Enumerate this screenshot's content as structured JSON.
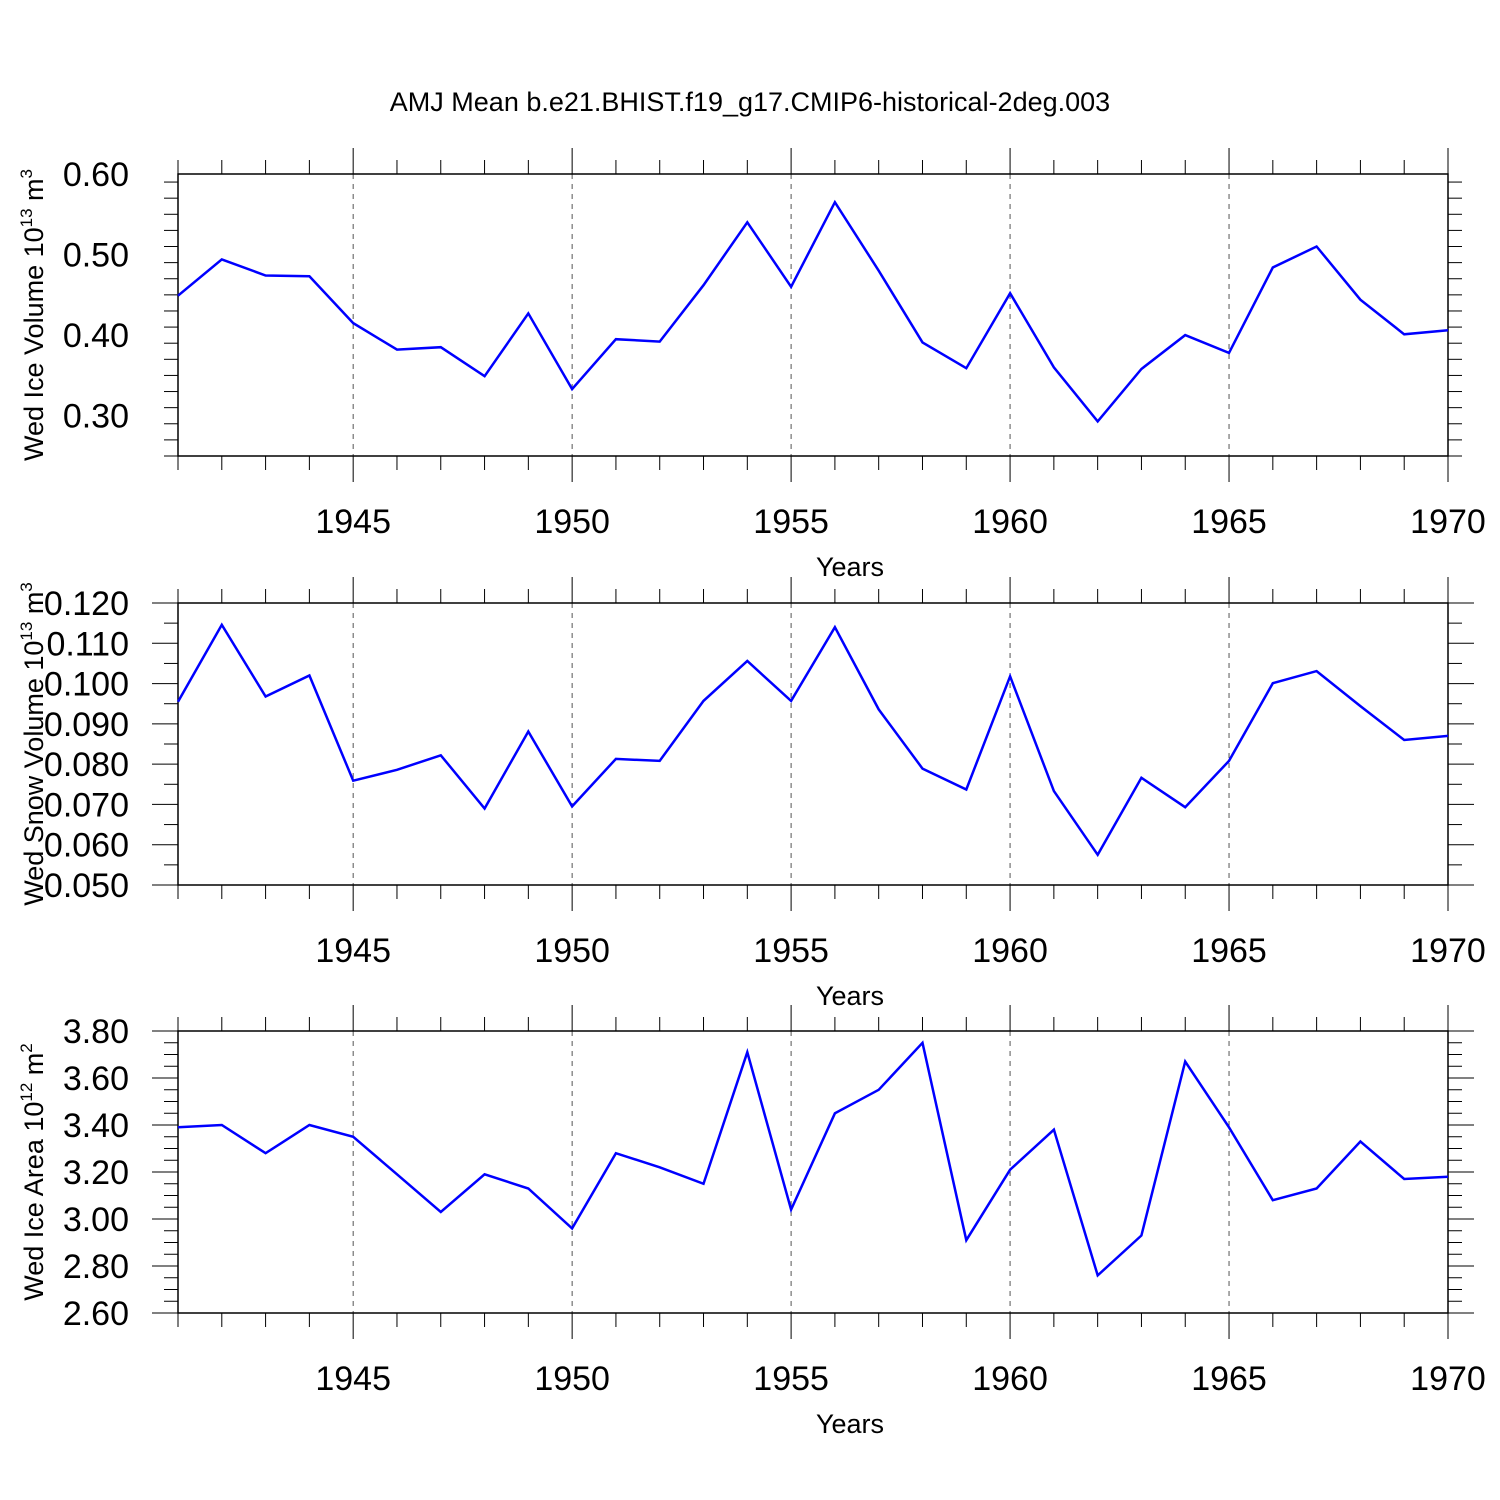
{
  "figure": {
    "title": "AMJ Mean b.e21.BHIST.f19_g17.CMIP6-historical-2deg.003"
  },
  "colors": {
    "line": "#0000ff",
    "axis": "#000000",
    "grid": "#555555",
    "background": "#ffffff"
  },
  "chart_data": [
    {
      "type": "line",
      "title": "AMJ Mean b.e21.BHIST.f19_g17.CMIP6-historical-2deg.003",
      "xlabel": "Years",
      "ylabel": "Wed Ice Volume 10",
      "ylabel_exp": "13",
      "ylabel_unit": " m",
      "ylabel_unit_exp": "3",
      "xlim": [
        1941,
        1970
      ],
      "ylim": [
        0.25,
        0.6
      ],
      "yticks": [
        "0.30",
        "0.40",
        "0.50",
        "0.60"
      ],
      "xticks": [
        "1945",
        "1950",
        "1955",
        "1960",
        "1965",
        "1970"
      ],
      "grid": "vertical dashed at major x ticks",
      "x": [
        1941,
        1942,
        1943,
        1944,
        1945,
        1946,
        1947,
        1948,
        1949,
        1950,
        1951,
        1952,
        1953,
        1954,
        1955,
        1956,
        1957,
        1958,
        1959,
        1960,
        1961,
        1962,
        1963,
        1964,
        1965,
        1966,
        1967,
        1968,
        1969,
        1970
      ],
      "series": [
        {
          "values": [
            0.449,
            0.494,
            0.474,
            0.473,
            0.415,
            0.382,
            0.385,
            0.349,
            0.427,
            0.333,
            0.395,
            0.392,
            0.462,
            0.54,
            0.46,
            0.565,
            0.48,
            0.391,
            0.359,
            0.452,
            0.36,
            0.293,
            0.358,
            0.4,
            0.378,
            0.484,
            0.51,
            0.444,
            0.401,
            0.406
          ]
        }
      ]
    },
    {
      "type": "line",
      "xlabel": "Years",
      "ylabel": "Wed Snow Volume 10",
      "ylabel_exp": "13",
      "ylabel_unit": " m",
      "ylabel_unit_exp": "3",
      "xlim": [
        1941,
        1970
      ],
      "ylim": [
        0.05,
        0.12
      ],
      "yticks": [
        "0.050",
        "0.060",
        "0.070",
        "0.080",
        "0.090",
        "0.100",
        "0.110",
        "0.120"
      ],
      "xticks": [
        "1945",
        "1950",
        "1955",
        "1960",
        "1965",
        "1970"
      ],
      "grid": "vertical dashed at major x ticks",
      "x": [
        1941,
        1942,
        1943,
        1944,
        1945,
        1946,
        1947,
        1948,
        1949,
        1950,
        1951,
        1952,
        1953,
        1954,
        1955,
        1956,
        1957,
        1958,
        1959,
        1960,
        1961,
        1962,
        1963,
        1964,
        1965,
        1966,
        1967,
        1968,
        1969,
        1970
      ],
      "series": [
        {
          "values": [
            0.0955,
            0.1146,
            0.0968,
            0.102,
            0.0759,
            0.0786,
            0.0822,
            0.069,
            0.0881,
            0.0695,
            0.0813,
            0.0808,
            0.0957,
            0.1056,
            0.0957,
            0.114,
            0.0936,
            0.0789,
            0.0737,
            0.1018,
            0.0733,
            0.0575,
            0.0766,
            0.0693,
            0.0808,
            0.1001,
            0.1031,
            0.0944,
            0.086,
            0.087
          ]
        }
      ]
    },
    {
      "type": "line",
      "xlabel": "Years",
      "ylabel": "Wed Ice Area 10",
      "ylabel_exp": "12",
      "ylabel_unit": " m",
      "ylabel_unit_exp": "2",
      "xlim": [
        1941,
        1970
      ],
      "ylim": [
        2.6,
        3.8
      ],
      "yticks": [
        "2.60",
        "2.80",
        "3.00",
        "3.20",
        "3.40",
        "3.60",
        "3.80"
      ],
      "xticks": [
        "1945",
        "1950",
        "1955",
        "1960",
        "1965",
        "1970"
      ],
      "grid": "vertical dashed at major x ticks",
      "x": [
        1941,
        1942,
        1943,
        1944,
        1945,
        1946,
        1947,
        1948,
        1949,
        1950,
        1951,
        1952,
        1953,
        1954,
        1955,
        1956,
        1957,
        1958,
        1959,
        1960,
        1961,
        1962,
        1963,
        1964,
        1965,
        1966,
        1967,
        1968,
        1969,
        1970
      ],
      "series": [
        {
          "values": [
            3.39,
            3.4,
            3.28,
            3.4,
            3.35,
            3.19,
            3.03,
            3.19,
            3.13,
            2.96,
            3.28,
            3.22,
            3.15,
            3.71,
            3.04,
            3.45,
            3.55,
            3.75,
            2.91,
            3.21,
            3.38,
            2.76,
            2.93,
            3.67,
            3.39,
            3.08,
            3.13,
            3.33,
            3.17,
            3.18
          ]
        }
      ]
    }
  ]
}
